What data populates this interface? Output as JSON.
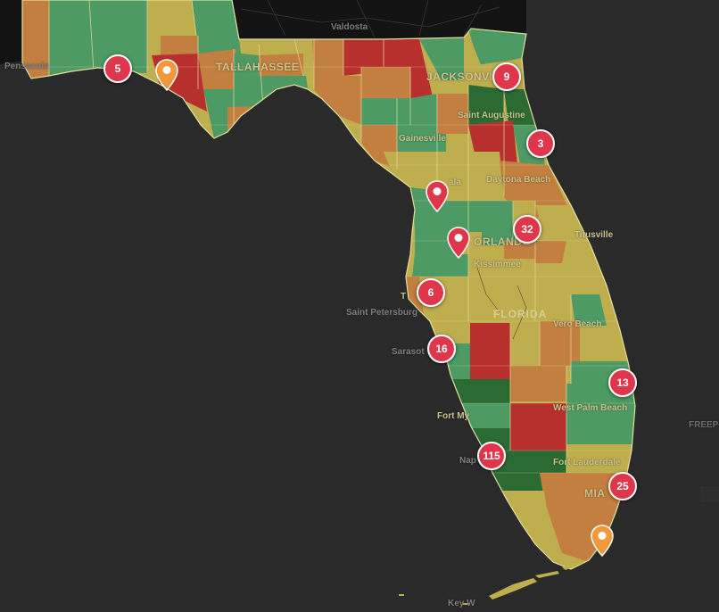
{
  "map": {
    "region": "Florida",
    "colors": {
      "water": "#2a2a2a",
      "land_outside": "#131313",
      "county_border": "#e4df9e",
      "dark_green": "#2b6b33",
      "green": "#4d9a65",
      "yellow": "#bfae4e",
      "orange": "#c27f3f",
      "red": "#b8302e",
      "cluster_fill": "#e0364c",
      "pin_red": "#e0364c",
      "pin_orange": "#f1983a"
    },
    "city_labels": [
      {
        "id": "valdosta",
        "text": "Valdosta"
      },
      {
        "id": "pensacola",
        "text": "Pensacola"
      },
      {
        "id": "tallahassee",
        "text": "TALLAHASSEE"
      },
      {
        "id": "jacksonville",
        "text": "JACKSONVILL"
      },
      {
        "id": "saint-augustine",
        "text": "Saint Augustine"
      },
      {
        "id": "gainesville",
        "text": "Gainesville"
      },
      {
        "id": "ocala",
        "text": "ala"
      },
      {
        "id": "daytona-beach",
        "text": "Daytona Beach"
      },
      {
        "id": "titusville",
        "text": "Titusville"
      },
      {
        "id": "orlando",
        "text": "ORLANDO"
      },
      {
        "id": "kissimmee",
        "text": "Kissimmee"
      },
      {
        "id": "tampa",
        "text": "T"
      },
      {
        "id": "saint-petersburg",
        "text": "Saint Petersburg"
      },
      {
        "id": "sarasota",
        "text": "Sarasot"
      },
      {
        "id": "vero-beach",
        "text": "Vero Beach"
      },
      {
        "id": "fort-myers",
        "text": "Fort My"
      },
      {
        "id": "west-palm-beach",
        "text": "West Palm Beach"
      },
      {
        "id": "naples",
        "text": "Nap"
      },
      {
        "id": "fort-lauderdale",
        "text": "Fort Lauderdale"
      },
      {
        "id": "miami",
        "text": "MIA"
      },
      {
        "id": "key-west",
        "text": "Key W"
      },
      {
        "id": "freeport",
        "text": "FREEP"
      }
    ],
    "state_label": "FLORIDA",
    "clusters": [
      {
        "id": "panhandle-west",
        "count": "5"
      },
      {
        "id": "jacksonville",
        "count": "9"
      },
      {
        "id": "daytona",
        "count": "3"
      },
      {
        "id": "orlando",
        "count": "32"
      },
      {
        "id": "tampa",
        "count": "6"
      },
      {
        "id": "sarasota",
        "count": "16"
      },
      {
        "id": "palm-beach",
        "count": "13"
      },
      {
        "id": "naples",
        "count": "115"
      },
      {
        "id": "miami",
        "count": "25"
      }
    ],
    "pins": [
      {
        "id": "panama-city",
        "color": "orange"
      },
      {
        "id": "ocala-area",
        "color": "red"
      },
      {
        "id": "lake-county",
        "color": "red"
      },
      {
        "id": "homestead",
        "color": "orange"
      }
    ]
  }
}
